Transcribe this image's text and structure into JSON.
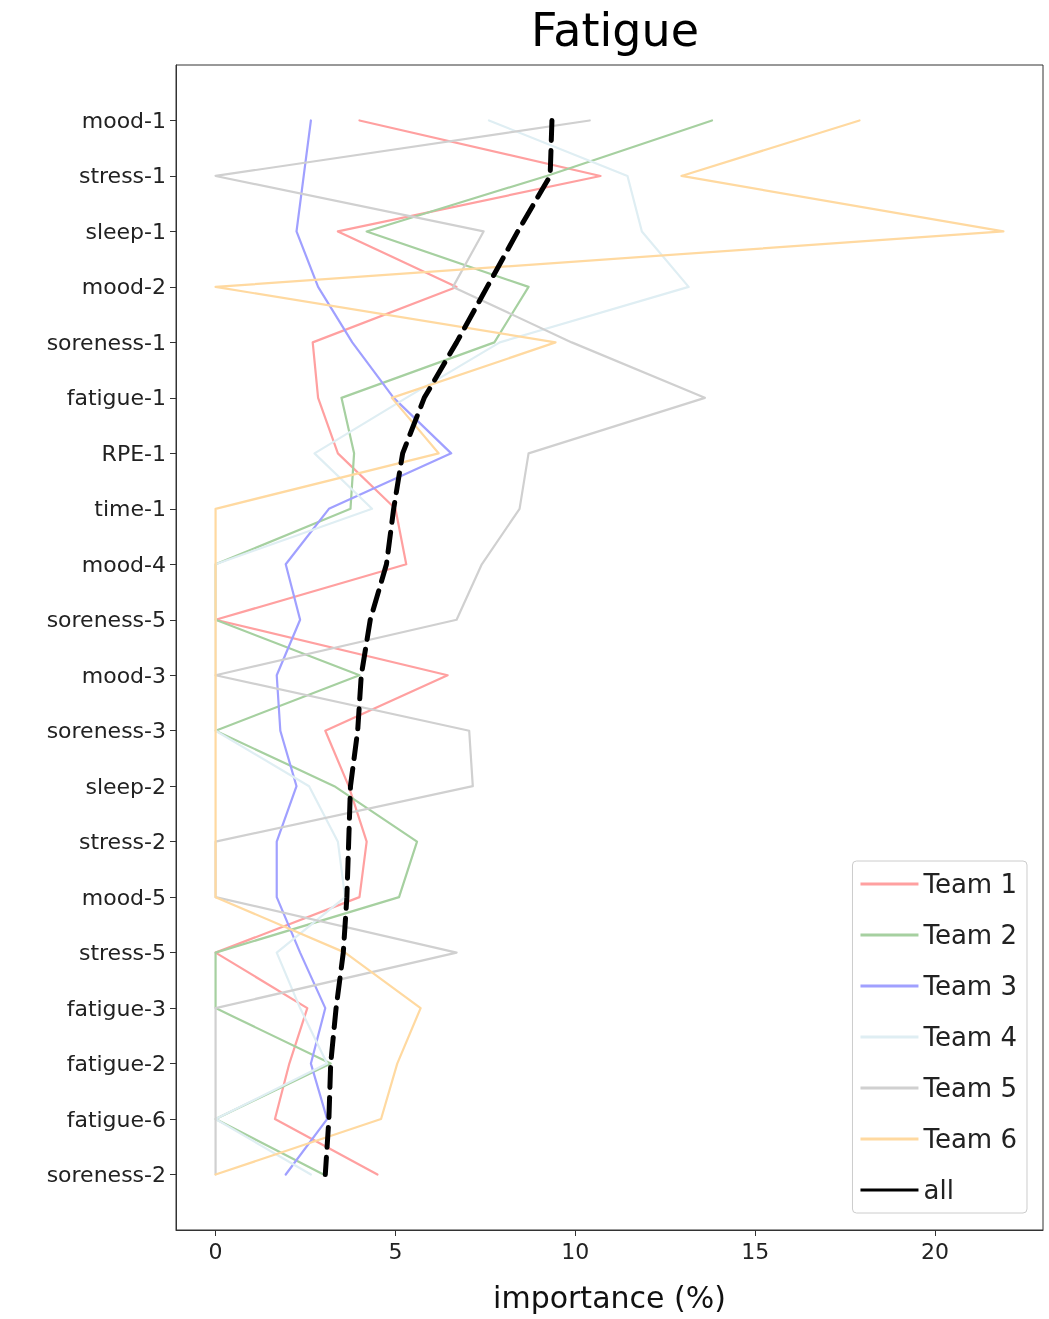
{
  "chart_data": {
    "type": "line",
    "title": "Fatigue",
    "xlabel": "importance (%)",
    "orientation": "horizontal",
    "categories": [
      "mood-1",
      "stress-1",
      "sleep-1",
      "mood-2",
      "soreness-1",
      "fatigue-1",
      "RPE-1",
      "time-1",
      "mood-4",
      "soreness-5",
      "mood-3",
      "soreness-3",
      "sleep-2",
      "stress-2",
      "mood-5",
      "stress-5",
      "fatigue-3",
      "fatigue-2",
      "fatigue-6",
      "soreness-2"
    ],
    "xlim": [
      -1.1,
      23
    ],
    "xticks": [
      0,
      5,
      10,
      15,
      20
    ],
    "grid": false,
    "legend": "bottom right",
    "marker": "none",
    "series": [
      {
        "name": "Team 1",
        "color": "#ffa0a0",
        "values": [
          4.0,
          10.7,
          3.4,
          6.7,
          2.7,
          2.85,
          3.4,
          5.0,
          5.3,
          0,
          6.45,
          3.05,
          3.7,
          4.2,
          4.0,
          0,
          2.55,
          2.05,
          1.65,
          4.5
        ]
      },
      {
        "name": "Team 2",
        "color": "#a6d0a0",
        "values": [
          13.8,
          9.2,
          4.2,
          8.7,
          7.75,
          3.5,
          3.85,
          3.75,
          0,
          0,
          4.0,
          0,
          3.3,
          5.6,
          5.1,
          0,
          0,
          3.2,
          0,
          3.0
        ]
      },
      {
        "name": "Team 3",
        "color": "#a0a0ff",
        "values": [
          2.65,
          2.45,
          2.25,
          2.85,
          3.8,
          4.95,
          6.55,
          3.15,
          1.95,
          2.35,
          1.7,
          1.8,
          2.25,
          1.7,
          1.7,
          2.35,
          3.05,
          2.65,
          3.1,
          1.95
        ]
      },
      {
        "name": "Team 4",
        "color": "#dfeef3",
        "values": [
          7.6,
          11.45,
          11.85,
          13.15,
          7.9,
          5.3,
          2.75,
          4.35,
          0,
          0,
          0,
          0,
          2.6,
          3.4,
          3.6,
          1.7,
          2.35,
          3.1,
          0,
          2.65
        ]
      },
      {
        "name": "Team 5",
        "color": "#d0d0d0",
        "values": [
          10.4,
          0,
          7.45,
          6.6,
          9.9,
          13.6,
          8.7,
          8.45,
          7.4,
          6.7,
          0,
          7.05,
          7.15,
          0,
          0,
          6.7,
          0,
          0,
          0,
          0
        ]
      },
      {
        "name": "Team 6",
        "color": "#ffd9a0",
        "values": [
          17.9,
          12.95,
          21.9,
          0,
          9.45,
          4.9,
          6.2,
          0,
          0,
          0,
          0,
          0,
          0,
          0,
          0,
          3.6,
          5.7,
          5.05,
          4.6,
          0
        ]
      },
      {
        "name": "all",
        "color": "#000000",
        "line_style": "dashed",
        "values": [
          9.35,
          9.3,
          8.4,
          7.55,
          6.7,
          5.8,
          5.2,
          4.95,
          4.75,
          4.3,
          4.05,
          3.95,
          3.75,
          3.7,
          3.65,
          3.55,
          3.35,
          3.2,
          3.15,
          3.05
        ]
      }
    ]
  }
}
